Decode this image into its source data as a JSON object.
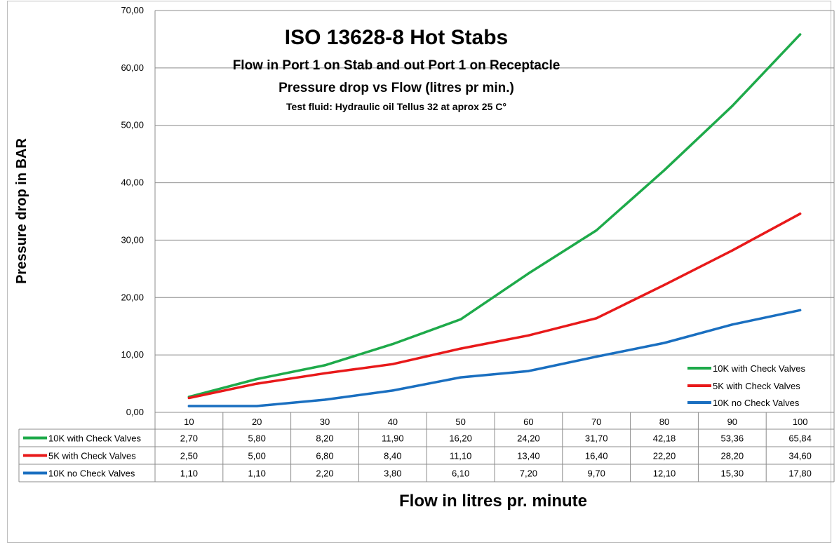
{
  "chart_data": {
    "type": "line",
    "title": "ISO 13628-8 Hot Stabs",
    "subtitle_1": "Flow in Port 1 on Stab and out Port 1 on Receptacle",
    "subtitle_2": "Pressure drop  vs Flow (litres pr min.)",
    "subtitle_3": "Test fluid: Hydraulic oil Tellus 32 at aprox 25 C°",
    "xlabel": "Flow in litres pr. minute",
    "ylabel": "Pressure drop in BAR",
    "ylim": [
      0,
      70
    ],
    "yticks": [
      "0,00",
      "10,00",
      "20,00",
      "30,00",
      "40,00",
      "50,00",
      "60,00",
      "70,00"
    ],
    "categories": [
      "10",
      "20",
      "30",
      "40",
      "50",
      "60",
      "70",
      "80",
      "90",
      "100"
    ],
    "grid": true,
    "legend_position": "bottom-right",
    "series": [
      {
        "name": "10K with Check Valves",
        "color": "#1eaa4a",
        "values": [
          2.7,
          5.8,
          8.2,
          11.9,
          16.2,
          24.2,
          31.7,
          42.18,
          53.36,
          65.84
        ],
        "labels": [
          "2,70",
          "5,80",
          "8,20",
          "11,90",
          "16,20",
          "24,20",
          "31,70",
          "42,18",
          "53,36",
          "65,84"
        ]
      },
      {
        "name": "5K with Check Valves",
        "color": "#e8191a",
        "values": [
          2.5,
          5.0,
          6.8,
          8.4,
          11.1,
          13.4,
          16.4,
          22.2,
          28.2,
          34.6
        ],
        "labels": [
          "2,50",
          "5,00",
          "6,80",
          "8,40",
          "11,10",
          "13,40",
          "16,40",
          "22,20",
          "28,20",
          "34,60"
        ]
      },
      {
        "name": "10K no Check Valves",
        "color": "#1a6fc0",
        "values": [
          1.1,
          1.1,
          2.2,
          3.8,
          6.1,
          7.2,
          9.7,
          12.1,
          15.3,
          17.8
        ],
        "labels": [
          "1,10",
          "1,10",
          "2,20",
          "3,80",
          "6,10",
          "7,20",
          "9,70",
          "12,10",
          "15,30",
          "17,80"
        ]
      }
    ]
  }
}
